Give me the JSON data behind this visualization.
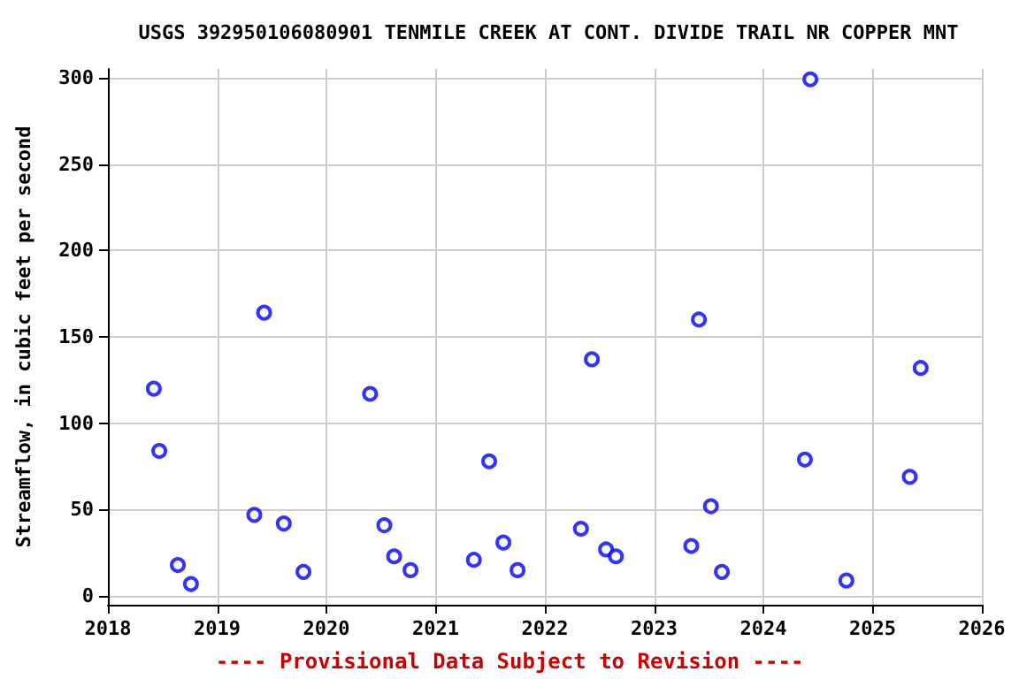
{
  "chart_data": {
    "type": "scatter",
    "title": "USGS 392950106080901 TENMILE CREEK AT CONT. DIVIDE TRAIL NR COPPER MNT",
    "ylabel": "Streamflow, in cubic feet per second",
    "annotations": [
      "---- Provisional Data Subject to Revision ----"
    ],
    "x": [
      2018.42,
      2018.47,
      2018.64,
      2018.76,
      2019.34,
      2019.43,
      2019.61,
      2019.79,
      2020.4,
      2020.53,
      2020.62,
      2020.77,
      2021.35,
      2021.49,
      2021.62,
      2021.75,
      2022.33,
      2022.43,
      2022.56,
      2022.65,
      2023.34,
      2023.41,
      2023.52,
      2023.62,
      2024.38,
      2024.43,
      2024.76,
      2025.34,
      2025.44
    ],
    "values": [
      120,
      84,
      18,
      7,
      47,
      164,
      42,
      14,
      117,
      41,
      23,
      15,
      21,
      78,
      31,
      15,
      39,
      137,
      27,
      23,
      29,
      160,
      52,
      14,
      79,
      299,
      9,
      69,
      132
    ],
    "color": "#0000ff",
    "marker": "circle",
    "grid": true,
    "xlim": [
      2018,
      2026
    ],
    "xticks": [
      2018,
      2019,
      2020,
      2021,
      2022,
      2023,
      2024,
      2025,
      2026
    ],
    "ylim": [
      -5,
      305
    ],
    "yticks": [
      0,
      50,
      100,
      150,
      200,
      250,
      300
    ]
  }
}
